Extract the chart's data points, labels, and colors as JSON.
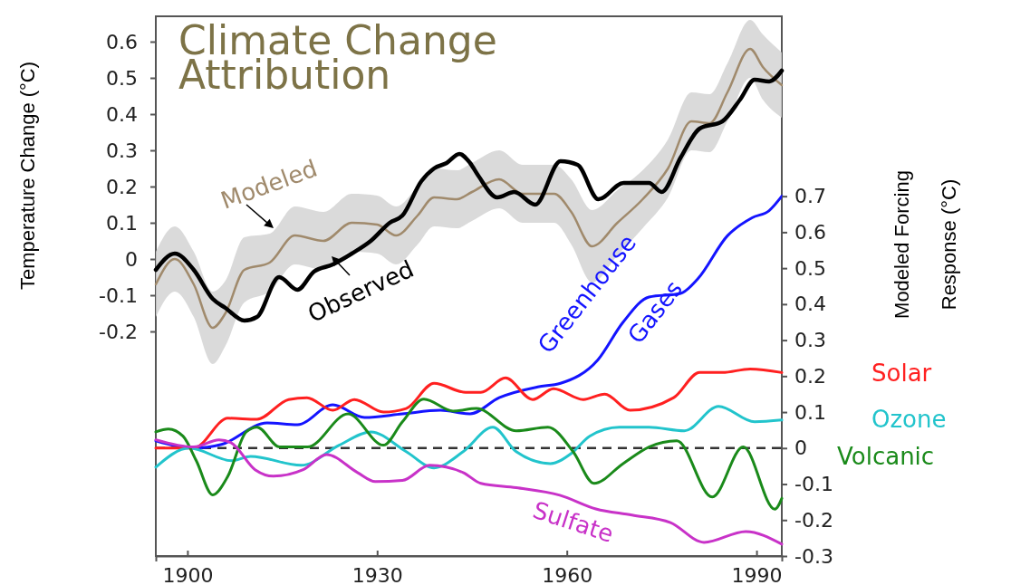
{
  "chart_data": {
    "type": "line",
    "title": "Climate Change Attribution",
    "ylabel": "Temperature Change (°C)",
    "y2label": "Modeled Forcing Response (°C)",
    "xlim": [
      1895,
      1994
    ],
    "xticks": [
      1900,
      1930,
      1960,
      1990
    ],
    "ylim": [
      -0.82,
      0.67
    ],
    "yticks": [
      -0.2,
      -0.1,
      0,
      0.1,
      0.2,
      0.3,
      0.4,
      0.5,
      0.6
    ],
    "y2lim": [
      -0.3,
      1.2
    ],
    "y2ticks": [
      -0.3,
      -0.2,
      -0.1,
      0,
      0.1,
      0.2,
      0.3,
      0.4,
      0.5,
      0.6,
      0.7
    ],
    "ref_lines": [
      {
        "axis": "y2",
        "value": 0,
        "line_style": "dashed",
        "color": "#333333"
      }
    ],
    "series": [
      {
        "name": "Modeled",
        "color": "#a08a6c",
        "x": [
          1895,
          1898,
          1901,
          1904,
          1906,
          1909,
          1913,
          1917,
          1921.5,
          1926,
          1930,
          1933,
          1936.4,
          1939,
          1942.6,
          1945,
          1949.3,
          1953,
          1958,
          1960.7,
          1964,
          1968,
          1972,
          1976,
          1979.7,
          1982.6,
          1985.4,
          1989,
          1991,
          1994
        ],
        "values": [
          -0.07,
          0,
          -0.07,
          -0.19,
          -0.15,
          -0.03,
          -0.01,
          0.065,
          0.05,
          0.1,
          0.095,
          0.065,
          0.12,
          0.17,
          0.165,
          0.185,
          0.22,
          0.18,
          0.18,
          0.13,
          0.035,
          0.1,
          0.165,
          0.25,
          0.38,
          0.375,
          0.46,
          0.58,
          0.53,
          0.48
        ],
        "upper": [
          0.02,
          0.09,
          0.02,
          -0.09,
          -0.06,
          0.06,
          0.07,
          0.145,
          0.13,
          0.18,
          0.175,
          0.145,
          0.2,
          0.25,
          0.245,
          0.265,
          0.3,
          0.26,
          0.26,
          0.22,
          0.135,
          0.19,
          0.245,
          0.33,
          0.46,
          0.455,
          0.54,
          0.66,
          0.62,
          0.57
        ],
        "lower": [
          -0.16,
          -0.09,
          -0.16,
          -0.29,
          -0.24,
          -0.12,
          -0.09,
          -0.015,
          -0.03,
          0.02,
          0.015,
          -0.015,
          0.04,
          0.09,
          0.085,
          0.105,
          0.14,
          0.1,
          0.1,
          0.04,
          -0.065,
          0.01,
          0.085,
          0.17,
          0.3,
          0.295,
          0.38,
          0.5,
          0.44,
          0.39
        ]
      },
      {
        "name": "Observed",
        "color": "#000000",
        "x": [
          1895,
          1898,
          1901,
          1904,
          1906,
          1909,
          1911,
          1914.5,
          1917.4,
          1920,
          1923,
          1926,
          1929,
          1932,
          1934,
          1937,
          1939,
          1941,
          1943,
          1944.7,
          1946,
          1949,
          1951.7,
          1955,
          1959,
          1961.7,
          1965,
          1969,
          1973,
          1975,
          1978,
          1981,
          1984.6,
          1987.4,
          1989.7,
          1992,
          1994
        ],
        "values": [
          -0.03,
          0.015,
          -0.03,
          -0.11,
          -0.135,
          -0.17,
          -0.16,
          -0.05,
          -0.085,
          -0.035,
          -0.015,
          0.015,
          0.05,
          0.1,
          0.12,
          0.215,
          0.25,
          0.265,
          0.29,
          0.265,
          0.23,
          0.17,
          0.185,
          0.15,
          0.27,
          0.26,
          0.165,
          0.21,
          0.21,
          0.185,
          0.28,
          0.36,
          0.38,
          0.44,
          0.495,
          0.49,
          0.52
        ]
      },
      {
        "name": "Greenhouse Gases",
        "color": "#1414ff",
        "axis": "y2",
        "x": [
          1895,
          1901,
          1905.4,
          1912.6,
          1917.4,
          1923,
          1928,
          1934,
          1940,
          1944.7,
          1949.3,
          1955.4,
          1959,
          1964.9,
          1968.9,
          1973,
          1978,
          1980.7,
          1985.4,
          1989.3,
          1992,
          1994
        ],
        "values": [
          0.02,
          0,
          0.01,
          0.07,
          0.065,
          0.12,
          0.085,
          0.095,
          0.105,
          0.095,
          0.14,
          0.17,
          0.18,
          0.245,
          0.35,
          0.42,
          0.43,
          0.47,
          0.59,
          0.64,
          0.66,
          0.7
        ]
      },
      {
        "name": "Solar",
        "color": "#ff2020",
        "axis": "y2",
        "x": [
          1895,
          1901,
          1906.4,
          1911,
          1916,
          1918.9,
          1923,
          1926.4,
          1931,
          1934.6,
          1939,
          1944,
          1946.4,
          1950.3,
          1954.6,
          1957.9,
          1962.6,
          1966,
          1970,
          1976.9,
          1981,
          1984.6,
          1989,
          1994
        ],
        "values": [
          0,
          0,
          0.083,
          0.08,
          0.135,
          0.14,
          0.105,
          0.135,
          0.1,
          0.11,
          0.18,
          0.155,
          0.155,
          0.195,
          0.135,
          0.165,
          0.135,
          0.15,
          0.105,
          0.14,
          0.21,
          0.21,
          0.22,
          0.21
        ]
      },
      {
        "name": "Ozone",
        "color": "#22c4cc",
        "axis": "y2",
        "x": [
          1895,
          1900.3,
          1907,
          1910,
          1918,
          1924,
          1929,
          1934.6,
          1939,
          1943.6,
          1948.3,
          1952,
          1957.4,
          1960.7,
          1963.6,
          1968.3,
          1973,
          1978.6,
          1984,
          1989.7,
          1994
        ],
        "values": [
          -0.053,
          0,
          -0.035,
          -0.023,
          -0.048,
          0.008,
          0.045,
          -0.01,
          -0.055,
          -0.01,
          0.058,
          -0.01,
          -0.043,
          -0.015,
          0.033,
          0.058,
          0.058,
          0.048,
          0.116,
          0.073,
          0.078
        ]
      },
      {
        "name": "Volcanic",
        "color": "#1a8a1a",
        "axis": "y2",
        "x": [
          1895,
          1897,
          1899.3,
          1901.4,
          1904,
          1906.4,
          1909.3,
          1911,
          1914.6,
          1919,
          1925.4,
          1931,
          1934,
          1937.4,
          1942,
          1945.7,
          1952,
          1957,
          1961,
          1964.3,
          1968.9,
          1973,
          1977.4,
          1983,
          1987.9,
          1992.9,
          1994
        ],
        "values": [
          0.045,
          0.053,
          0.033,
          -0.035,
          -0.13,
          -0.078,
          0.045,
          0.058,
          0.003,
          0.003,
          0.095,
          0.008,
          0.073,
          0.136,
          0.103,
          0.11,
          0.048,
          0.058,
          -0.01,
          -0.098,
          -0.043,
          0.003,
          0.02,
          -0.136,
          0.003,
          -0.17,
          -0.14
        ]
      },
      {
        "name": "Sulfate",
        "color": "#c832c8",
        "axis": "y2",
        "x": [
          1895,
          1901,
          1905,
          1906.9,
          1910.7,
          1913.6,
          1918.3,
          1922,
          1926.9,
          1929.7,
          1934,
          1938.3,
          1943.6,
          1946.4,
          1952,
          1958.9,
          1964.6,
          1970.3,
          1976.4,
          1981.7,
          1988.3,
          1994
        ],
        "values": [
          0.023,
          0.003,
          0.023,
          0.015,
          -0.06,
          -0.078,
          -0.06,
          -0.018,
          -0.068,
          -0.093,
          -0.09,
          -0.048,
          -0.068,
          -0.098,
          -0.11,
          -0.131,
          -0.169,
          -0.186,
          -0.207,
          -0.262,
          -0.232,
          -0.267
        ]
      }
    ]
  }
}
